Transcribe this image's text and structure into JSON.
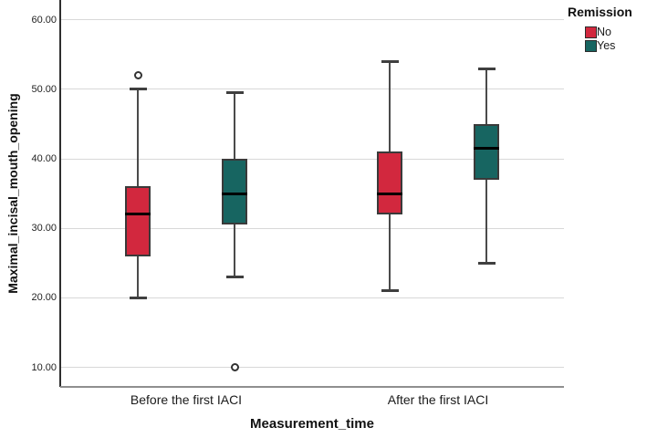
{
  "chart_data": {
    "type": "boxplot",
    "title": "",
    "xlabel": "Measurement_time",
    "ylabel": "Maximal_incisal_mouth_opening",
    "categories": [
      "Before the first IACI",
      "After the first IACI"
    ],
    "grid": true,
    "legend": {
      "title": "Remission",
      "position": "top-right"
    },
    "y_axis": {
      "min": 10,
      "max": 60,
      "tick_values": [
        10,
        20,
        30,
        40,
        50,
        60
      ],
      "tick_labels": [
        "10.00",
        "20.00",
        "30.00",
        "40.00",
        "50.00",
        "60.00"
      ]
    },
    "series": [
      {
        "name": "No",
        "color": "#d2283e",
        "boxes": [
          {
            "category": "Before the first IACI",
            "whisker_low": 20,
            "q1": 26,
            "median": 32,
            "q3": 36,
            "whisker_high": 50,
            "outliers": [
              52
            ]
          },
          {
            "category": "After the first IACI",
            "whisker_low": 21,
            "q1": 32,
            "median": 35,
            "q3": 41,
            "whisker_high": 54,
            "outliers": []
          }
        ]
      },
      {
        "name": "Yes",
        "color": "#176561",
        "boxes": [
          {
            "category": "Before the first IACI",
            "whisker_low": 23,
            "q1": 30.5,
            "median": 35,
            "q3": 40,
            "whisker_high": 49.5,
            "outliers": [
              10
            ]
          },
          {
            "category": "After the first IACI",
            "whisker_low": 25,
            "q1": 37,
            "median": 41.5,
            "q3": 45,
            "whisker_high": 53,
            "outliers": []
          }
        ]
      }
    ]
  }
}
